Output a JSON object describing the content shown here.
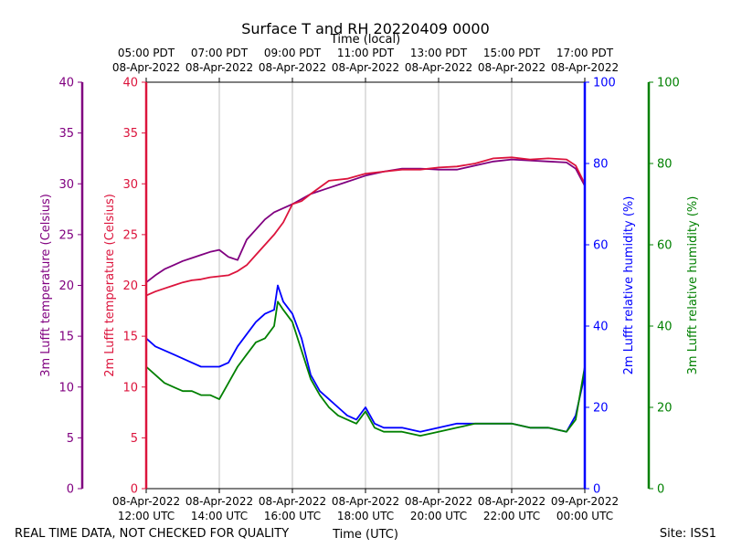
{
  "chart_data": {
    "type": "line",
    "title": "Surface T and RH 20220409 0000",
    "top_axis_label": "Time (local)",
    "xlabel": "Time (UTC)",
    "footer_left": "REAL TIME DATA, NOT CHECKED FOR QUALITY",
    "footer_right": "Site: ISS1",
    "x_unit": "hours since 08-Apr-2022 12:00 UTC",
    "xlim": [
      0,
      12
    ],
    "x_grid": true,
    "x_ticks": [
      {
        "x": 0,
        "bottom": [
          "08-Apr-2022",
          "12:00 UTC"
        ],
        "top": [
          "05:00 PDT",
          "08-Apr-2022"
        ]
      },
      {
        "x": 2,
        "bottom": [
          "08-Apr-2022",
          "14:00 UTC"
        ],
        "top": [
          "07:00 PDT",
          "08-Apr-2022"
        ]
      },
      {
        "x": 4,
        "bottom": [
          "08-Apr-2022",
          "16:00 UTC"
        ],
        "top": [
          "09:00 PDT",
          "08-Apr-2022"
        ]
      },
      {
        "x": 6,
        "bottom": [
          "08-Apr-2022",
          "18:00 UTC"
        ],
        "top": [
          "11:00 PDT",
          "08-Apr-2022"
        ]
      },
      {
        "x": 8,
        "bottom": [
          "08-Apr-2022",
          "20:00 UTC"
        ],
        "top": [
          "13:00 PDT",
          "08-Apr-2022"
        ]
      },
      {
        "x": 10,
        "bottom": [
          "08-Apr-2022",
          "22:00 UTC"
        ],
        "top": [
          "15:00 PDT",
          "08-Apr-2022"
        ]
      },
      {
        "x": 12,
        "bottom": [
          "09-Apr-2022",
          "00:00 UTC"
        ],
        "top": [
          "17:00 PDT",
          "08-Apr-2022"
        ]
      }
    ],
    "axes": [
      {
        "id": "t3m",
        "label": "3m Lufft temperature (Celsius)",
        "color": "#800080",
        "ylim": [
          0,
          40
        ],
        "ticks": [
          0,
          5,
          10,
          15,
          20,
          25,
          30,
          35,
          40
        ]
      },
      {
        "id": "t2m",
        "label": "2m Lufft temperature (Celsius)",
        "color": "#dc143c",
        "ylim": [
          0,
          40
        ],
        "ticks": [
          0,
          5,
          10,
          15,
          20,
          25,
          30,
          35,
          40
        ]
      },
      {
        "id": "rh2m",
        "label": "2m Lufft relative humidity (%)",
        "color": "#0000ff",
        "ylim": [
          0,
          100
        ],
        "ticks": [
          0,
          20,
          40,
          60,
          80,
          100
        ]
      },
      {
        "id": "rh3m",
        "label": "3m Lufft relative humidity (%)",
        "color": "#008000",
        "ylim": [
          0,
          100
        ],
        "ticks": [
          0,
          20,
          40,
          60,
          80,
          100
        ]
      }
    ],
    "series": [
      {
        "name": "3m Lufft temperature",
        "axis": "t3m",
        "color": "#800080",
        "x": [
          0,
          0.25,
          0.5,
          0.75,
          1,
          1.25,
          1.5,
          1.75,
          2,
          2.25,
          2.5,
          2.75,
          3,
          3.25,
          3.5,
          3.75,
          4,
          4.5,
          5,
          5.5,
          6,
          6.5,
          7,
          7.5,
          8,
          8.5,
          9,
          9.5,
          10,
          10.5,
          11,
          11.5,
          11.75,
          12
        ],
        "values": [
          20.3,
          21.0,
          21.6,
          22.0,
          22.4,
          22.7,
          23.0,
          23.3,
          23.5,
          22.8,
          22.5,
          24.5,
          25.5,
          26.5,
          27.2,
          27.6,
          28.0,
          29.0,
          29.6,
          30.2,
          30.8,
          31.2,
          31.5,
          31.5,
          31.4,
          31.4,
          31.8,
          32.2,
          32.4,
          32.3,
          32.2,
          32.1,
          31.5,
          29.8
        ]
      },
      {
        "name": "2m Lufft temperature",
        "axis": "t2m",
        "color": "#dc143c",
        "x": [
          0,
          0.25,
          0.5,
          0.75,
          1,
          1.25,
          1.5,
          1.75,
          2,
          2.25,
          2.5,
          2.75,
          3,
          3.25,
          3.5,
          3.75,
          4,
          4.25,
          4.5,
          5,
          5.5,
          6,
          6.5,
          7,
          7.5,
          8,
          8.5,
          9,
          9.5,
          10,
          10.5,
          11,
          11.5,
          11.75,
          12
        ],
        "values": [
          19.0,
          19.4,
          19.7,
          20.0,
          20.3,
          20.5,
          20.6,
          20.8,
          20.9,
          21.0,
          21.4,
          22.0,
          23.0,
          24.0,
          25.0,
          26.2,
          28.0,
          28.3,
          29.0,
          30.3,
          30.5,
          31.0,
          31.2,
          31.4,
          31.4,
          31.6,
          31.7,
          32.0,
          32.5,
          32.6,
          32.4,
          32.5,
          32.4,
          31.8,
          30.0
        ]
      },
      {
        "name": "2m Lufft relative humidity",
        "axis": "rh2m",
        "color": "#0000ff",
        "x": [
          0,
          0.25,
          0.5,
          0.75,
          1,
          1.25,
          1.5,
          1.75,
          2,
          2.25,
          2.5,
          2.75,
          3,
          3.25,
          3.5,
          3.6,
          3.75,
          4,
          4.25,
          4.5,
          4.75,
          5,
          5.25,
          5.5,
          5.75,
          6,
          6.25,
          6.5,
          7,
          7.5,
          8,
          8.5,
          9,
          9.5,
          10,
          10.5,
          11,
          11.5,
          11.75,
          12
        ],
        "values": [
          37,
          35,
          34,
          33,
          32,
          31,
          30,
          30,
          30,
          31,
          35,
          38,
          41,
          43,
          44,
          50,
          46,
          43,
          37,
          28,
          24,
          22,
          20,
          18,
          17,
          20,
          16,
          15,
          15,
          14,
          15,
          16,
          16,
          16,
          16,
          15,
          15,
          14,
          18,
          28
        ]
      },
      {
        "name": "3m Lufft relative humidity",
        "axis": "rh3m",
        "color": "#008000",
        "x": [
          0,
          0.25,
          0.5,
          0.75,
          1,
          1.25,
          1.5,
          1.75,
          2,
          2.25,
          2.5,
          2.75,
          3,
          3.25,
          3.5,
          3.6,
          3.75,
          4,
          4.25,
          4.5,
          4.75,
          5,
          5.25,
          5.5,
          5.75,
          6,
          6.25,
          6.5,
          7,
          7.5,
          8,
          8.5,
          9,
          9.5,
          10,
          10.5,
          11,
          11.5,
          11.75,
          12
        ],
        "values": [
          30,
          28,
          26,
          25,
          24,
          24,
          23,
          23,
          22,
          26,
          30,
          33,
          36,
          37,
          40,
          46,
          44,
          41,
          34,
          27,
          23,
          20,
          18,
          17,
          16,
          19,
          15,
          14,
          14,
          13,
          14,
          15,
          16,
          16,
          16,
          15,
          15,
          14,
          17,
          30
        ]
      }
    ]
  }
}
